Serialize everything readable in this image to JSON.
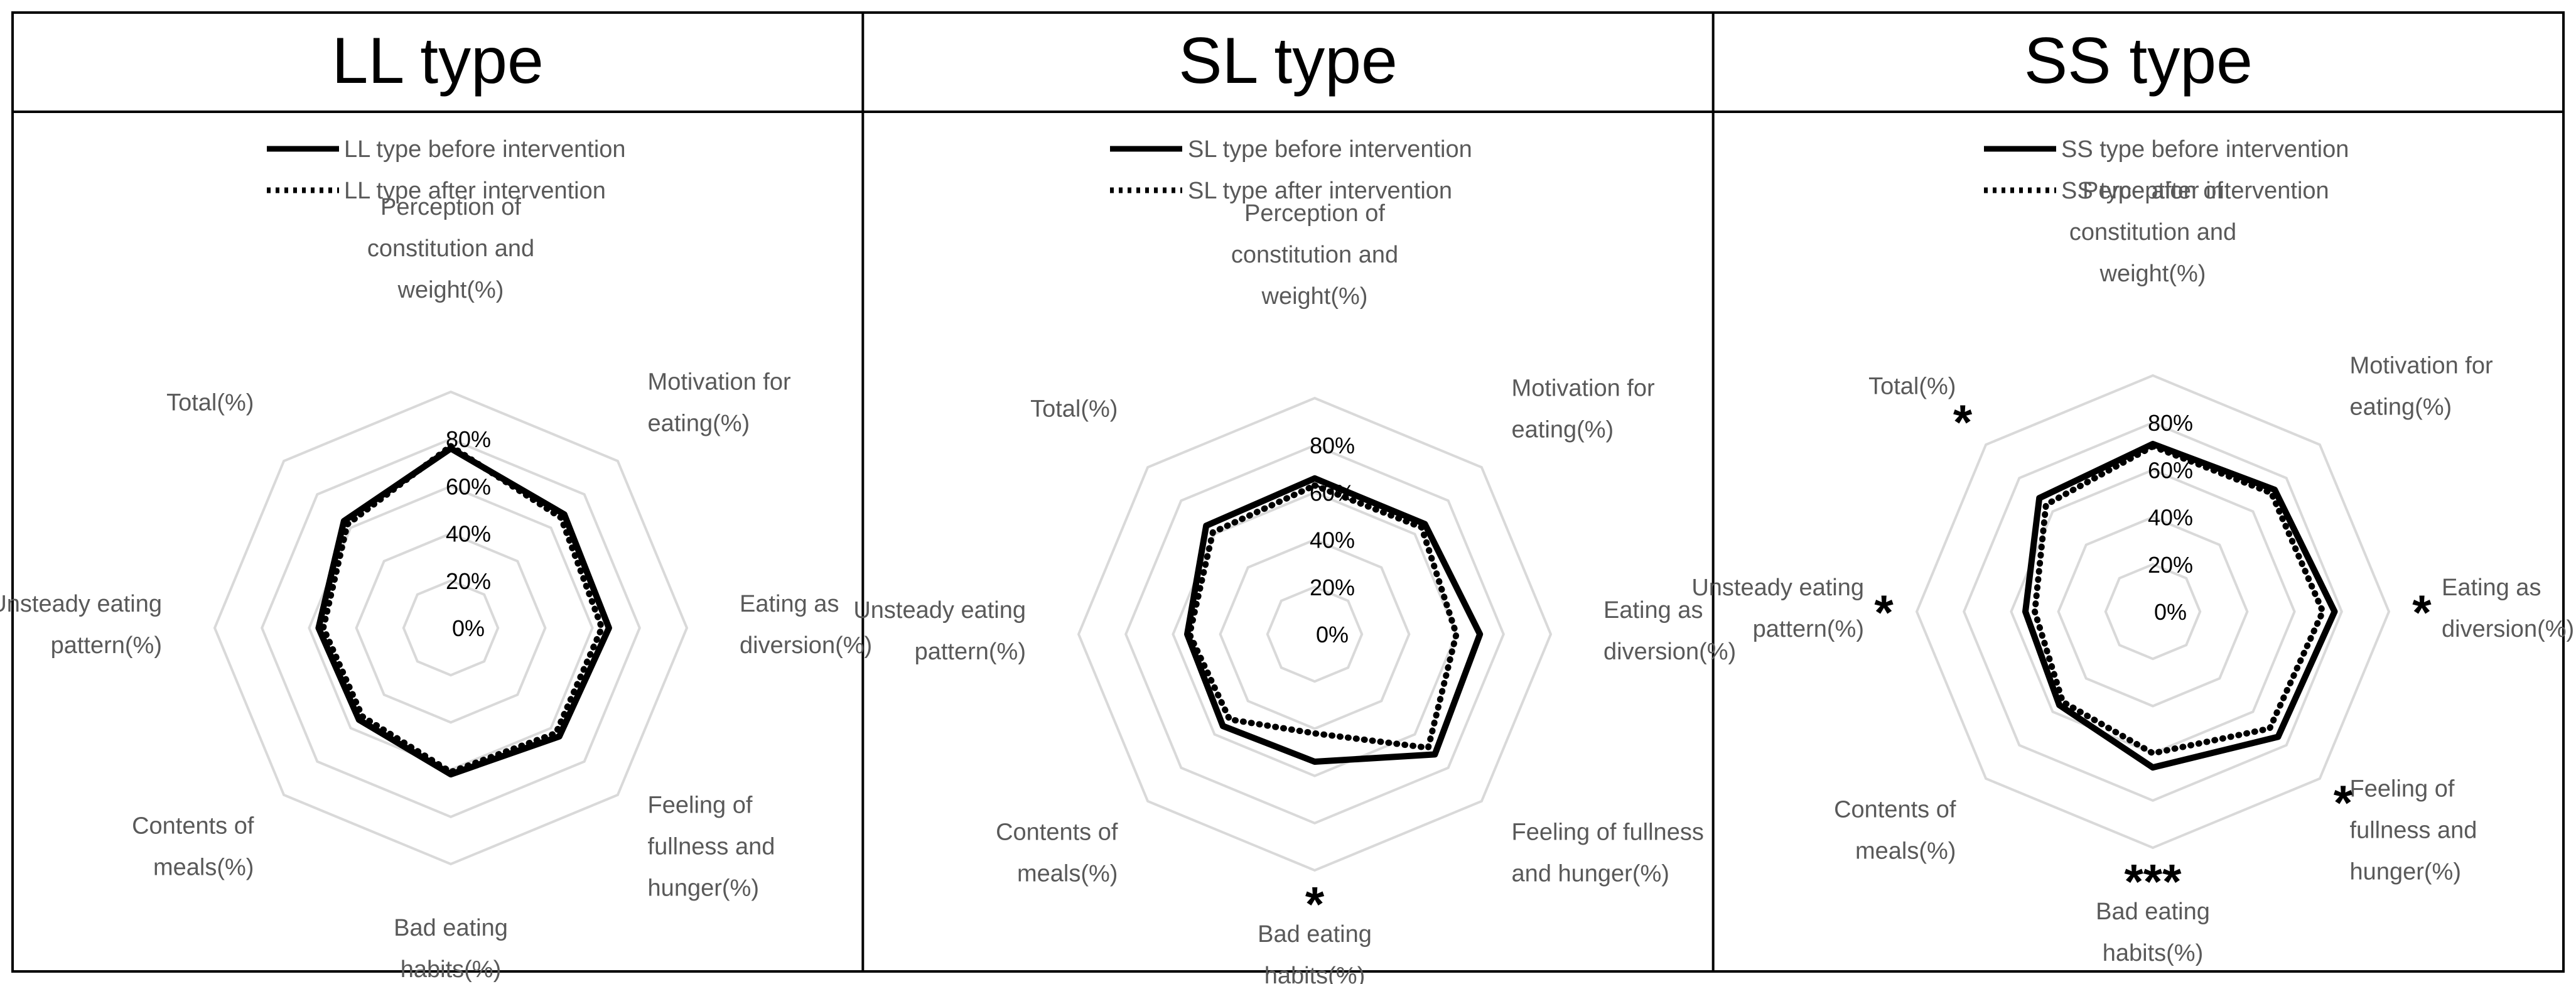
{
  "chart_data": [
    {
      "type": "radar",
      "title": "LL type",
      "categories": [
        "Perception of constitution and weight(%)",
        "Motivation for eating(%)",
        "Eating as diversion(%)",
        "Feeling of fullness and hunger(%)",
        "Bad eating habits(%)",
        "Contents of meals(%)",
        "Unsteady eating pattern(%)",
        "Total(%)"
      ],
      "category_lines": [
        [
          "Perception of",
          "constitution and",
          "weight(%)"
        ],
        [
          "Motivation for",
          "eating(%)"
        ],
        [
          "Eating as",
          "diversion(%)"
        ],
        [
          "Feeling of",
          "fullness and",
          "hunger(%)"
        ],
        [
          "Bad eating",
          "habits(%)"
        ],
        [
          "Contents of",
          "meals(%)"
        ],
        [
          "Unsteady eating",
          "pattern(%)"
        ],
        [
          "Total(%)"
        ]
      ],
      "rlim": [
        0,
        100
      ],
      "ticks": [
        "0%",
        "20%",
        "40%",
        "60%",
        "80%"
      ],
      "tick_values": [
        0,
        20,
        40,
        60,
        80
      ],
      "grid": true,
      "legend_position": "top",
      "series": [
        {
          "name": "LL type before intervention",
          "style": "solid",
          "values": [
            76,
            68,
            67,
            65,
            62,
            55,
            56,
            64
          ]
        },
        {
          "name": "LL type after intervention",
          "style": "dotted",
          "values": [
            77,
            66,
            64,
            63,
            61,
            53,
            54,
            62
          ]
        }
      ],
      "significance": []
    },
    {
      "type": "radar",
      "title": "SL type",
      "categories": [
        "Perception of constitution and weight(%)",
        "Motivation for eating(%)",
        "Eating as diversion(%)",
        "Feeling of fullness and hunger(%)",
        "Bad eating habits(%)",
        "Contents of meals(%)",
        "Unsteady eating pattern(%)",
        "Total(%)"
      ],
      "category_lines": [
        [
          "Perception of",
          "constitution and",
          "weight(%)"
        ],
        [
          "Motivation for",
          "eating(%)"
        ],
        [
          "Eating as",
          "diversion(%)"
        ],
        [
          "Feeling of fullness",
          "and hunger(%)"
        ],
        [
          "Bad eating",
          "habits(%)"
        ],
        [
          "Contents of",
          "meals(%)"
        ],
        [
          "Unsteady eating",
          "pattern(%)"
        ],
        [
          "Total(%)"
        ]
      ],
      "rlim": [
        0,
        100
      ],
      "ticks": [
        "0%",
        "20%",
        "40%",
        "60%",
        "80%"
      ],
      "tick_values": [
        0,
        20,
        40,
        60,
        80
      ],
      "grid": true,
      "legend_position": "top",
      "series": [
        {
          "name": "SL type before intervention",
          "style": "solid",
          "values": [
            66,
            66,
            70,
            72,
            54,
            55,
            54,
            65
          ]
        },
        {
          "name": "SL type after intervention",
          "style": "dotted",
          "values": [
            63,
            64,
            60,
            68,
            42,
            51,
            53,
            61
          ]
        }
      ],
      "significance": [
        {
          "category": "Bad eating habits(%)",
          "mark": "*"
        }
      ]
    },
    {
      "type": "radar",
      "title": "SS type",
      "categories": [
        "Perception of constitution and weight(%)",
        "Motivation for eating(%)",
        "Eating as diversion(%)",
        "Feeling of fullness and hunger(%)",
        "Bad eating habits(%)",
        "Contents of meals(%)",
        "Unsteady eating pattern(%)",
        "Total(%)"
      ],
      "category_lines": [
        [
          "Perception of",
          "constitution and",
          "weight(%)"
        ],
        [
          "Motivation for",
          "eating(%)"
        ],
        [
          "Eating as",
          "diversion(%)"
        ],
        [
          "Feeling of",
          "fullness and",
          "hunger(%)"
        ],
        [
          "Bad eating",
          "habits(%)"
        ],
        [
          "Contents of",
          "meals(%)"
        ],
        [
          "Unsteady eating",
          "pattern(%)"
        ],
        [
          "Total(%)"
        ]
      ],
      "rlim": [
        0,
        100
      ],
      "ticks": [
        "0%",
        "20%",
        "40%",
        "60%",
        "80%"
      ],
      "tick_values": [
        0,
        20,
        40,
        60,
        80
      ],
      "grid": true,
      "legend_position": "top",
      "series": [
        {
          "name": "SS type before intervention",
          "style": "solid",
          "values": [
            71,
            73,
            77,
            75,
            66,
            56,
            54,
            68
          ]
        },
        {
          "name": "SS type after intervention",
          "style": "dotted",
          "values": [
            70,
            71,
            72,
            70,
            60,
            54,
            50,
            64
          ]
        }
      ],
      "significance": [
        {
          "category": "Total(%)",
          "mark": "*"
        },
        {
          "category": "Unsteady eating pattern(%)",
          "mark": "*"
        },
        {
          "category": "Eating as diversion(%)",
          "mark": "*"
        },
        {
          "category": "Feeling of fullness and hunger(%)",
          "mark": "*"
        },
        {
          "category": "Bad eating habits(%)",
          "mark": "***"
        }
      ]
    }
  ]
}
